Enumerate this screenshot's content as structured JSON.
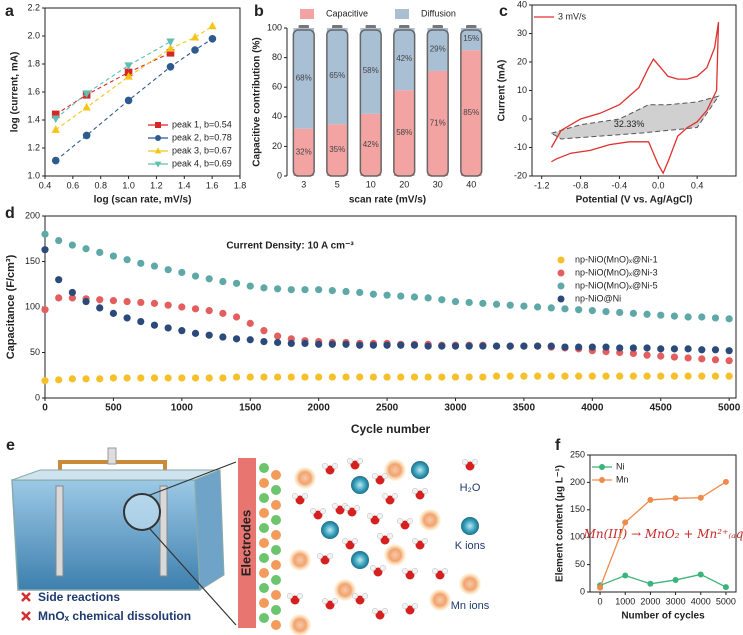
{
  "chart_data": [
    {
      "panel": "a",
      "type": "scatter",
      "xlabel": "log (scan rate, mV/s)",
      "ylabel": "log (current, mA)",
      "xlim": [
        0.4,
        1.8
      ],
      "xticks": [
        0.4,
        0.6,
        0.8,
        {
          "value": 1,
          "label": "1.0"
        },
        1.2,
        1.4,
        1.6,
        1.8
      ],
      "ylim": [
        1.0,
        2.2
      ],
      "yticks": [
        {
          "value": 1,
          "label": "1.0"
        },
        1.2,
        1.4,
        1.6,
        1.8,
        {
          "value": 2,
          "label": "2.0"
        },
        2.2
      ],
      "legend": "lower right",
      "series": [
        {
          "name": "peak 1, b=0.54",
          "color": "#d62728",
          "marker": "square",
          "line_style": "dashed",
          "x": [
            0.477,
            0.699,
            1.0,
            1.301
          ],
          "values": [
            1.44,
            1.58,
            1.74,
            1.88
          ]
        },
        {
          "name": "peak 2, b=0.78",
          "color": "#2e5b8f",
          "marker": "circle",
          "line_style": "dashed",
          "x": [
            0.477,
            0.699,
            1.0,
            1.301,
            1.477,
            1.602
          ],
          "values": [
            1.11,
            1.29,
            1.54,
            1.78,
            1.9,
            1.98
          ]
        },
        {
          "name": "peak 3, b=0.67",
          "color": "#f5c518",
          "marker": "triangle-up",
          "line_style": "dashed",
          "x": [
            0.477,
            0.699,
            1.0,
            1.301,
            1.477,
            1.602
          ],
          "values": [
            1.33,
            1.49,
            1.71,
            1.91,
            1.99,
            2.07
          ]
        },
        {
          "name": "peak 4, b=0.69",
          "color": "#5fbfb0",
          "marker": "triangle-down",
          "line_style": "dashed",
          "x": [
            0.477,
            0.699,
            1.0,
            1.301
          ],
          "values": [
            1.41,
            1.59,
            1.79,
            1.96
          ]
        }
      ]
    },
    {
      "panel": "b",
      "type": "bar",
      "stacked": true,
      "xlabel": "scan rate (mV/s)",
      "ylabel": "Capacitive contribution (%)",
      "categories": [
        "3",
        "5",
        "10",
        "20",
        "30",
        "40"
      ],
      "ylim": [
        0,
        100
      ],
      "yticks": [
        0,
        20,
        40,
        60,
        80,
        100
      ],
      "legend": "top",
      "series": [
        {
          "name": "Capacitive",
          "color": "#f4a3a3",
          "values": [
            32,
            35,
            42,
            58,
            71,
            85
          ],
          "value_labels": [
            "32%",
            "35%",
            "42%",
            "58%",
            "71%",
            "85%"
          ]
        },
        {
          "name": "Diffusion",
          "color": "#a9bfd4",
          "values": [
            68,
            65,
            58,
            42,
            29,
            15
          ],
          "value_labels": [
            "68%",
            "65%",
            "58%",
            "42%",
            "29%",
            "15%"
          ]
        }
      ]
    },
    {
      "panel": "c",
      "type": "line",
      "xlabel": "Potential (V vs. Ag/AgCl)",
      "ylabel": "Current (mA)",
      "xlim": [
        -1.3,
        0.8
      ],
      "xticks": [
        -1.2,
        -0.8,
        -0.4,
        {
          "value": 0,
          "label": "0.0"
        },
        0.4
      ],
      "ylim": [
        -20,
        40
      ],
      "yticks": [
        -20,
        -10,
        0,
        10,
        20,
        30,
        40
      ],
      "legend": "upper left",
      "region": {
        "label": "32.33%",
        "color": "#d0d0d0",
        "x": [
          -1.1,
          -0.8,
          -0.4,
          -0.1,
          0.1,
          0.4,
          0.62,
          0.4,
          0.1,
          -0.2,
          -0.6,
          -1.0,
          -1.1
        ],
        "values": [
          -5,
          -2,
          0,
          5,
          5,
          6,
          8,
          -3,
          -4,
          -5,
          -6,
          -7,
          -5
        ]
      },
      "series": [
        {
          "name": "3 mV/s",
          "color": "#e03030",
          "x": [
            -1.1,
            -1.0,
            -0.8,
            -0.6,
            -0.4,
            -0.2,
            -0.1,
            -0.05,
            0.0,
            0.1,
            0.2,
            0.3,
            0.4,
            0.5,
            0.58,
            0.62,
            0.6,
            0.5,
            0.4,
            0.3,
            0.2,
            0.1,
            0.05,
            0.0,
            -0.1,
            -0.3,
            -0.5,
            -0.7,
            -0.9,
            -1.05,
            -1.1
          ],
          "values": [
            -10,
            -4,
            0,
            2,
            5,
            11,
            18,
            21,
            19,
            15,
            14,
            14,
            15,
            18,
            25,
            34,
            10,
            3,
            -1,
            -3,
            -6,
            -15,
            -19,
            -16,
            -8,
            -8,
            -9,
            -11,
            -12,
            -14,
            -15
          ]
        }
      ]
    },
    {
      "panel": "d",
      "type": "scatter",
      "xlabel": "Cycle number",
      "ylabel": "Capacitance (F/cm³)",
      "annotation": "Current Density: 10 A cm⁻³",
      "xlim": [
        0,
        5050
      ],
      "xticks": [
        0,
        500,
        1000,
        1500,
        2000,
        2500,
        3000,
        3500,
        4000,
        4500,
        5000
      ],
      "ylim": [
        0,
        200
      ],
      "yticks": [
        0,
        50,
        100,
        150,
        200
      ],
      "legend": "upper right",
      "x": [
        0,
        100,
        200,
        300,
        400,
        500,
        600,
        700,
        800,
        900,
        1000,
        1100,
        1200,
        1300,
        1400,
        1500,
        1600,
        1700,
        1800,
        1900,
        2000,
        2100,
        2200,
        2300,
        2400,
        2500,
        2600,
        2700,
        2800,
        2900,
        3000,
        3100,
        3200,
        3300,
        3400,
        3500,
        3600,
        3700,
        3800,
        3900,
        4000,
        4100,
        4200,
        4300,
        4400,
        4500,
        4600,
        4700,
        4800,
        4900,
        5000
      ],
      "series": [
        {
          "name": "np-NiO(MnO)ₓ@Ni-1",
          "color": "#f5c02a",
          "marker": "circle",
          "values": [
            19,
            20,
            21,
            21,
            21,
            22,
            22,
            22,
            22,
            22,
            22,
            22,
            22,
            22,
            23,
            23,
            23,
            23,
            23,
            23,
            23,
            23,
            23,
            23,
            23,
            23,
            23,
            23,
            23,
            23,
            23,
            23,
            23,
            24,
            24,
            24,
            24,
            24,
            24,
            24,
            24,
            24,
            24,
            24,
            24,
            24,
            24,
            24,
            24,
            24,
            24
          ]
        },
        {
          "name": "np-NiO(MnO)ₓ@Ni-3",
          "color": "#e35f5f",
          "marker": "circle",
          "values": [
            97,
            110,
            110,
            109,
            108,
            107,
            106,
            105,
            104,
            102,
            100,
            98,
            96,
            93,
            89,
            82,
            74,
            68,
            65,
            63,
            62,
            61,
            61,
            60,
            60,
            60,
            59,
            59,
            59,
            58,
            58,
            58,
            58,
            57,
            57,
            57,
            57,
            56,
            55,
            54,
            52,
            51,
            50,
            49,
            47,
            46,
            45,
            44,
            43,
            42,
            41
          ]
        },
        {
          "name": "np-NiO(MnO)ₓ@Ni-5",
          "color": "#5fa8a8",
          "marker": "circle",
          "values": [
            180,
            173,
            168,
            164,
            160,
            156,
            152,
            148,
            145,
            141,
            138,
            134,
            131,
            128,
            126,
            123,
            121,
            120,
            119,
            119,
            119,
            118,
            117,
            116,
            114,
            113,
            112,
            111,
            110,
            108,
            106,
            105,
            104,
            103,
            102,
            101,
            100,
            99,
            98,
            97,
            96,
            95,
            94,
            93,
            92,
            91,
            90,
            89,
            89,
            88,
            87
          ]
        },
        {
          "name": "np-NiO@Ni",
          "color": "#2b4a7a",
          "marker": "circle",
          "values": [
            163,
            130,
            116,
            106,
            99,
            93,
            88,
            84,
            80,
            77,
            74,
            71,
            69,
            67,
            65,
            64,
            62,
            61,
            60,
            60,
            59,
            59,
            59,
            58,
            58,
            58,
            58,
            58,
            57,
            57,
            57,
            57,
            57,
            57,
            57,
            57,
            57,
            57,
            56,
            56,
            56,
            56,
            55,
            55,
            55,
            54,
            54,
            54,
            53,
            53,
            52
          ]
        }
      ]
    },
    {
      "panel": "f",
      "type": "line",
      "xlabel": "Number of cycles",
      "ylabel": "Element content (μg L⁻¹)",
      "annotation": "Mn(III) → MnO₂ + Mn²⁺₍ₐq₎",
      "xlim": [
        -400,
        5400
      ],
      "xticks": [
        0,
        1000,
        2000,
        3000,
        4000,
        5000
      ],
      "ylim": [
        0,
        250
      ],
      "yticks": [
        0,
        50,
        100,
        150,
        200,
        250
      ],
      "legend": "upper left",
      "x": [
        0,
        1000,
        2000,
        3000,
        4000,
        5000
      ],
      "series": [
        {
          "name": "Ni",
          "color": "#3cb37a",
          "marker": "circle",
          "values": [
            12,
            30,
            15,
            22,
            32,
            9
          ]
        },
        {
          "name": "Mn",
          "color": "#f08a4b",
          "marker": "circle",
          "values": [
            8,
            127,
            168,
            171,
            172,
            201
          ]
        }
      ]
    }
  ],
  "schematic": {
    "panel": "e",
    "electrodes": "Electrodes",
    "legend": [
      "H₂O",
      "K ions",
      "Mn ions"
    ],
    "notes": [
      "Side reactions",
      "MnOₓ chemical dissolution"
    ]
  }
}
